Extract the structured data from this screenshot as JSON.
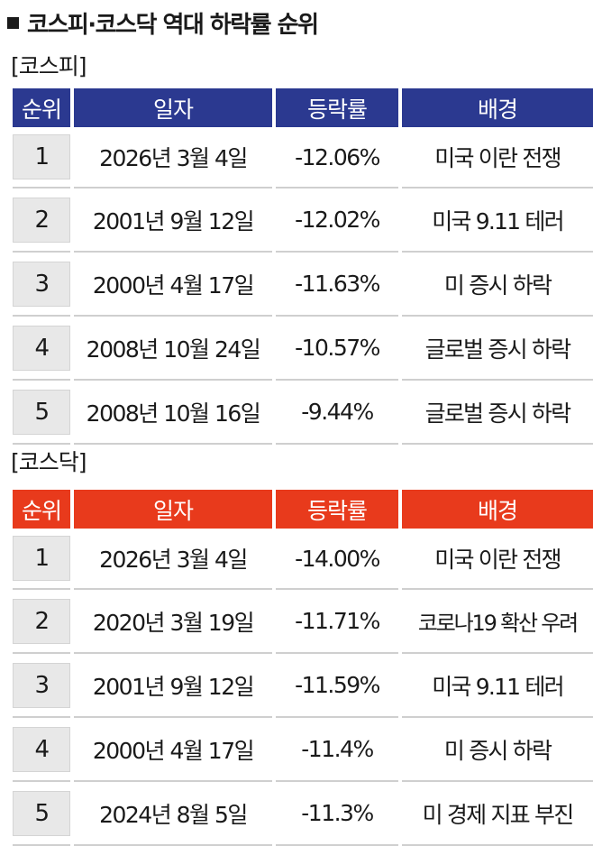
{
  "title": "코스피·코스닥 역대 하락률 순위",
  "kospi": {
    "label": "[코스피]",
    "headers": [
      "순위",
      "일자",
      "등락률",
      "배경"
    ],
    "rows": [
      {
        "rank": "1",
        "date": "2026년 3월 4일",
        "rate": "-12.06%",
        "bg": "미국 이란 전쟁"
      },
      {
        "rank": "2",
        "date": "2001년 9월 12일",
        "rate": "-12.02%",
        "bg": "미국 9.11 테러"
      },
      {
        "rank": "3",
        "date": "2000년 4월 17일",
        "rate": "-11.63%",
        "bg": "미 증시 하락"
      },
      {
        "rank": "4",
        "date": "2008년 10월 24일",
        "rate": "-10.57%",
        "bg": "글로벌 증시 하락"
      },
      {
        "rank": "5",
        "date": "2008년 10월 16일",
        "rate": "-9.44%",
        "bg": "글로벌 증시 하락"
      }
    ]
  },
  "kosdaq": {
    "label": "[코스닥]",
    "headers": [
      "순위",
      "일자",
      "등락률",
      "배경"
    ],
    "rows": [
      {
        "rank": "1",
        "date": "2026년 3월 4일",
        "rate": "-14.00%",
        "bg": "미국 이란 전쟁"
      },
      {
        "rank": "2",
        "date": "2020년 3월 19일",
        "rate": "-11.71%",
        "bg": "코로나19  확산 우려"
      },
      {
        "rank": "3",
        "date": "2001년 9월 12일",
        "rate": "-11.59%",
        "bg": "미국 9.11 테러"
      },
      {
        "rank": "4",
        "date": "2000년 4월 17일",
        "rate": "-11.4%",
        "bg": "미 증시 하락"
      },
      {
        "rank": "5",
        "date": "2024년 8월 5일",
        "rate": "-11.3%",
        "bg": "미 경제 지표 부진"
      }
    ]
  },
  "colors": {
    "kospi_header": "#2b3990",
    "kosdaq_header": "#e83a1c",
    "rank_cell": "#e8e8e8"
  }
}
